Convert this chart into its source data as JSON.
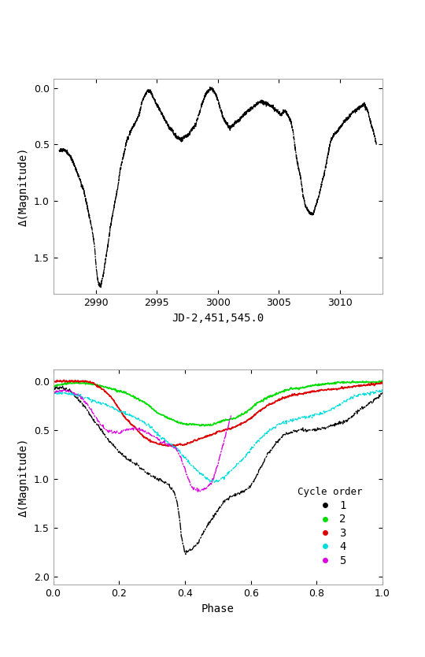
{
  "top_plot": {
    "xlabel": "JD-2,451,545.0",
    "ylabel": "Δ(Magnitude)",
    "xlim": [
      2986.5,
      3013.5
    ],
    "ylim": [
      1.82,
      -0.08
    ],
    "xticks": [
      2990,
      2995,
      3000,
      3005,
      3010
    ],
    "yticks": [
      0.0,
      0.5,
      1.0,
      1.5
    ]
  },
  "bottom_plot": {
    "xlabel": "Phase",
    "ylabel": "Δ(Magnitude)",
    "xlim": [
      0.0,
      1.0
    ],
    "ylim": [
      2.08,
      -0.12
    ],
    "xticks": [
      0.0,
      0.2,
      0.4,
      0.6,
      0.8,
      1.0
    ],
    "yticks": [
      0.0,
      0.5,
      1.0,
      1.5,
      2.0
    ],
    "legend_title": "Cycle order",
    "legend_labels": [
      "1",
      "2",
      "3",
      "4",
      "5"
    ],
    "legend_colors": [
      "#000000",
      "#00dd00",
      "#dd0000",
      "#00dddd",
      "#dd00dd"
    ]
  },
  "bg_color": "#ffffff",
  "text_color": "#000000"
}
